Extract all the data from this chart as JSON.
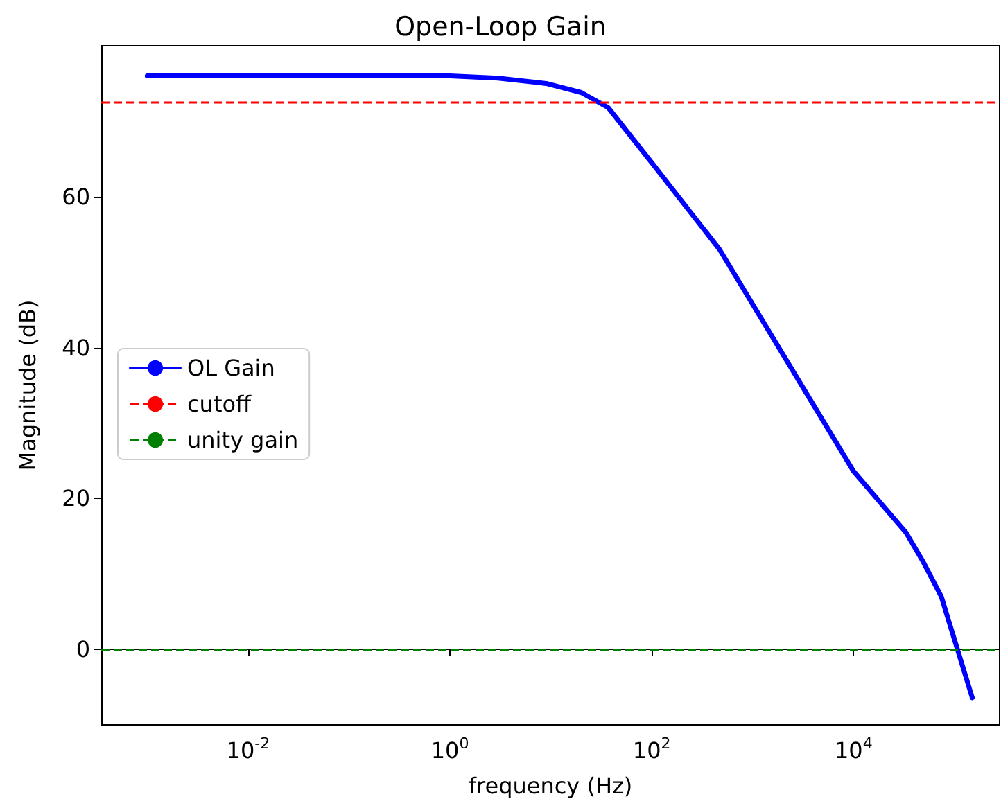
{
  "chart_data": {
    "type": "line",
    "title": "Open-Loop Gain",
    "xlabel": "frequency (Hz)",
    "ylabel": "Magnitude (dB)",
    "log": "x",
    "grid": false,
    "legend": "center left",
    "line_style": "solid",
    "marker": "none",
    "x": [
      0.001,
      1,
      3,
      9,
      20,
      37,
      100,
      470,
      10000,
      33000,
      49000,
      74000,
      107000,
      150000
    ],
    "series": [
      {
        "name": "OL Gain",
        "color": "#0000ff",
        "values": [
          76,
          76,
          75.7,
          75,
          73.8,
          71.8,
          64.5,
          53,
          23.6,
          15.5,
          11.6,
          7,
          0,
          -6.4
        ]
      }
    ],
    "ref_lines": [
      {
        "axis": "y",
        "value": 72.5,
        "label": "cutoff",
        "color": "#ff0000",
        "line_style": "dashed"
      },
      {
        "axis": "y",
        "value": 0,
        "label": "unity gain",
        "color": "#008000",
        "line_style": "dashed"
      }
    ],
    "xlim": [
      0.00035,
      280000
    ],
    "xticks": [
      {
        "value": 0.01,
        "label": "10$^{-2}$"
      },
      {
        "value": 1,
        "label": "10$^{0}$"
      },
      {
        "value": 100,
        "label": "10$^{2}$"
      },
      {
        "value": 10000,
        "label": "10$^{4}$"
      }
    ],
    "ylim": [
      -10,
      80
    ],
    "yticks": [
      0,
      20,
      40,
      60
    ]
  }
}
